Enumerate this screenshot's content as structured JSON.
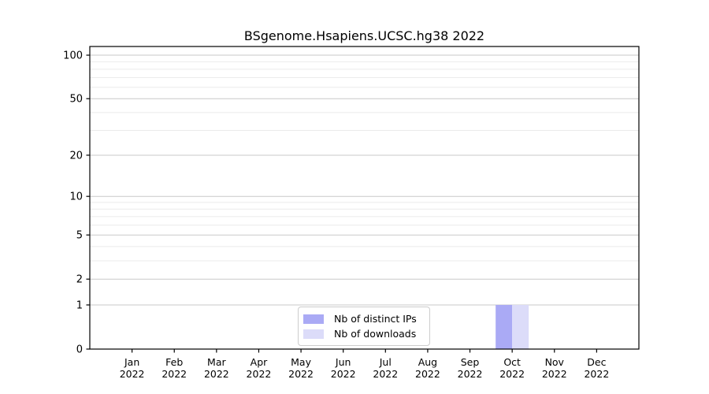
{
  "figure": {
    "title": "BSgenome.Hsapiens.UCSC.hg38 2022"
  },
  "chart_data": {
    "type": "bar",
    "title": "BSgenome.Hsapiens.UCSC.hg38 2022",
    "categories": [
      "Jan",
      "Feb",
      "Mar",
      "Apr",
      "May",
      "Jun",
      "Jul",
      "Aug",
      "Sep",
      "Oct",
      "Nov",
      "Dec"
    ],
    "category_year": "2022",
    "series": [
      {
        "name": "Nb of distinct IPs",
        "color": "#aaaaf5",
        "values": [
          0,
          0,
          0,
          0,
          0,
          0,
          0,
          0,
          0,
          1,
          0,
          0
        ]
      },
      {
        "name": "Nb of downloads",
        "color": "#dcdcf9",
        "values": [
          0,
          0,
          0,
          0,
          0,
          0,
          0,
          0,
          0,
          1,
          0,
          0
        ]
      }
    ],
    "xlabel": "",
    "ylabel": "",
    "y_axis": {
      "ticks": [
        0,
        1,
        2,
        5,
        10,
        20,
        50,
        100
      ],
      "minor_gridlines": [
        3,
        4,
        6,
        7,
        8,
        9,
        30,
        40,
        60,
        70,
        80,
        90
      ],
      "scale": "log10(1+v)",
      "ylim": [
        0,
        100
      ]
    },
    "grid": true,
    "legend_position": "lower center",
    "colors": {
      "major_grid": "#c9c9c9",
      "minor_grid": "#ebebeb",
      "axis": "#000000",
      "text": "#000000"
    }
  }
}
